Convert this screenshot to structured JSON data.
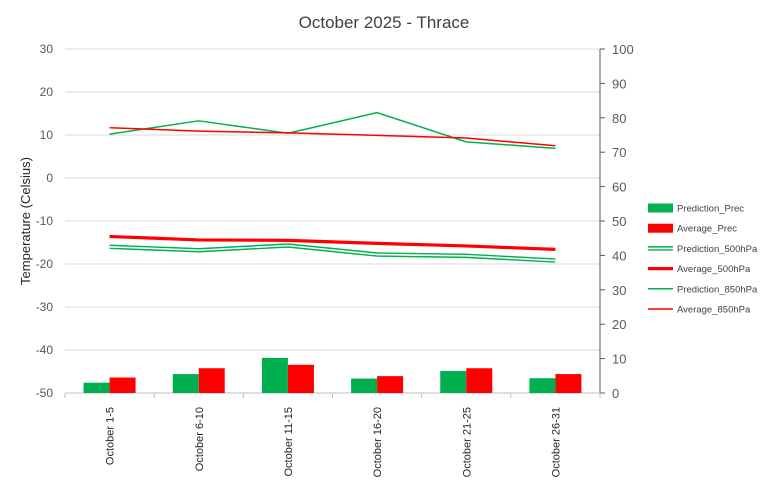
{
  "chart_data": {
    "type": "bar",
    "title": "October 2025 - Thrace",
    "ylabel": "Temperature (Celsius)",
    "y2label": "",
    "categories": [
      "October 1-5",
      "October 6-10",
      "October 11-15",
      "October 16-20",
      "October 21-25",
      "October 26-31"
    ],
    "ylim": [
      -50,
      30
    ],
    "yticks": [
      "30",
      "20",
      "10",
      "0",
      "-10",
      "-20",
      "-30",
      "-40",
      "-50"
    ],
    "y2lim": [
      0,
      100
    ],
    "y2ticks": [
      "100",
      "90",
      "80",
      "70",
      "60",
      "50",
      "40",
      "30",
      "20",
      "10",
      "0"
    ],
    "grid": true,
    "legend_position": "right",
    "series": [
      {
        "name": "Prediction_Prec",
        "kind": "bar",
        "axis": "right",
        "color": "#00b050",
        "values": [
          3.0,
          5.5,
          10.2,
          4.2,
          6.4,
          4.3
        ]
      },
      {
        "name": "Average_Prec",
        "kind": "bar",
        "axis": "right",
        "color": "#ff0000",
        "values": [
          4.5,
          7.2,
          8.2,
          4.9,
          7.2,
          5.5
        ]
      },
      {
        "name": "Prediction_500hPa",
        "kind": "line",
        "style": "double",
        "axis": "left",
        "color": "#00b050",
        "values": [
          -16.0,
          -16.8,
          -15.7,
          -17.8,
          -18.1,
          -19.2
        ]
      },
      {
        "name": "Average_500hPa",
        "kind": "line",
        "style": "thick",
        "axis": "left",
        "color": "#ff0000",
        "values": [
          -13.6,
          -14.4,
          -14.5,
          -15.2,
          -15.8,
          -16.6
        ]
      },
      {
        "name": "Prediction_850hPa",
        "kind": "line",
        "style": "thin",
        "axis": "left",
        "color": "#00b050",
        "values": [
          10.2,
          13.3,
          10.4,
          15.2,
          8.4,
          6.9
        ]
      },
      {
        "name": "Average_850hPa",
        "kind": "line",
        "style": "thin",
        "axis": "left",
        "color": "#ff0000",
        "values": [
          11.7,
          10.9,
          10.5,
          9.9,
          9.3,
          7.5
        ]
      }
    ]
  }
}
